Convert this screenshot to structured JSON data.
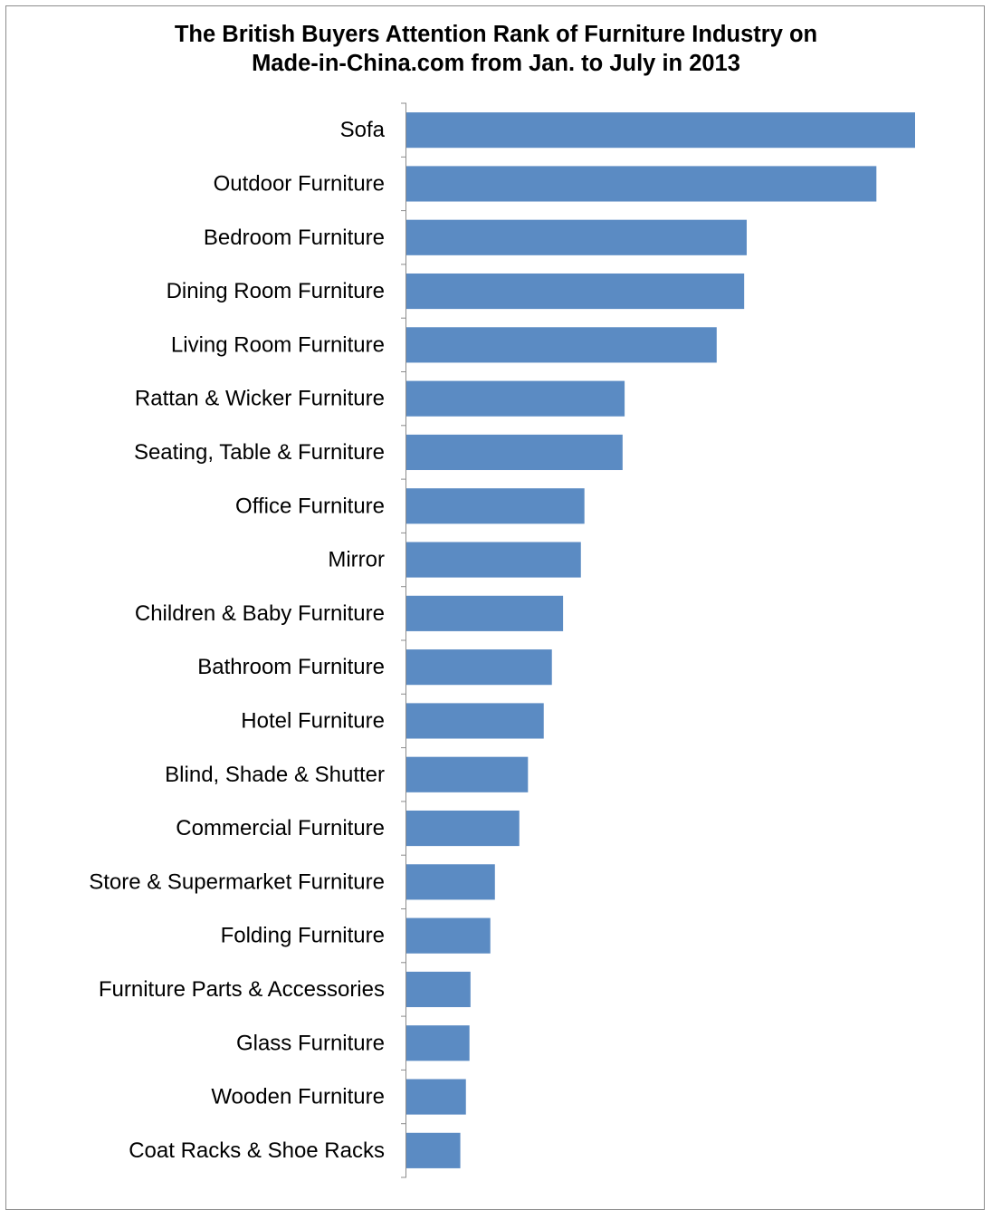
{
  "chart_data": {
    "type": "bar",
    "orientation": "horizontal",
    "title": "The British Buyers Attention Rank of Furniture Industry on Made-in-China.com from Jan. to July in 2013",
    "title_lines": [
      "The British Buyers Attention Rank of Furniture Industry on",
      "Made-in-China.com from Jan. to July in 2013"
    ],
    "xlabel": "",
    "ylabel": "",
    "categories": [
      "Sofa",
      "Outdoor Furniture",
      "Bedroom Furniture",
      "Dining Room Furniture",
      "Living Room Furniture",
      "Rattan & Wicker Furniture",
      "Seating, Table & Furniture",
      "Office Furniture",
      "Mirror",
      "Children & Baby Furniture",
      "Bathroom Furniture",
      "Hotel Furniture",
      "Blind, Shade & Shutter",
      "Commercial Furniture",
      "Store & Supermarket Furniture",
      "Folding Furniture",
      "Furniture Parts & Accessories",
      "Glass Furniture",
      "Wooden Furniture",
      "Coat Racks & Shoe Racks"
    ],
    "values": [
      100,
      92.4,
      66.9,
      66.4,
      61.0,
      42.9,
      42.5,
      35.0,
      34.3,
      30.8,
      28.6,
      27.0,
      23.9,
      22.2,
      17.4,
      16.5,
      12.6,
      12.4,
      11.7,
      10.6
    ],
    "value_axis_visible": false,
    "grid": false,
    "legend": "none",
    "bar_color": "#5b8bc3",
    "axis_color": "#8c8c8c"
  }
}
